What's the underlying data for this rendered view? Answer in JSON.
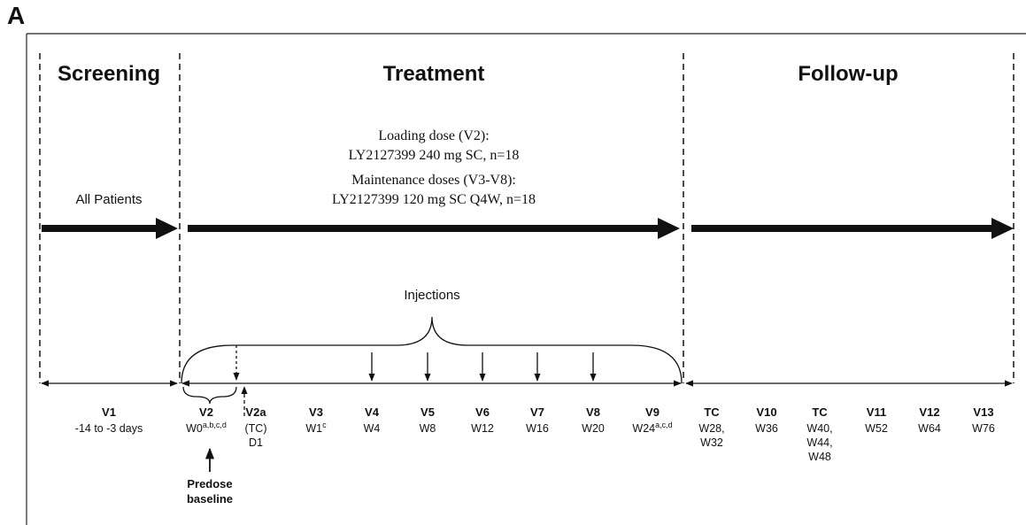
{
  "panel_label": "A",
  "phases": [
    {
      "title": "Screening"
    },
    {
      "title": "Treatment"
    },
    {
      "title": "Follow-up"
    }
  ],
  "screening_arrow_label": "All Patients",
  "dosing": [
    "Loading dose (V2):",
    "LY2127399 240 mg SC, n=18",
    "Maintenance doses (V3-V8):",
    "LY2127399 120 mg SC Q4W, n=18"
  ],
  "injections_label": "Injections",
  "visits": [
    {
      "name": "V1",
      "lines": [
        "-14 to -3 days"
      ]
    },
    {
      "name": "V2",
      "lines": [
        "W0"
      ],
      "sup": "a,b,c,d"
    },
    {
      "name": "V2a",
      "lines": [
        "(TC)",
        "D1"
      ]
    },
    {
      "name": "V3",
      "lines": [
        "W1"
      ],
      "sup": "c"
    },
    {
      "name": "V4",
      "lines": [
        "W4"
      ]
    },
    {
      "name": "V5",
      "lines": [
        "W8"
      ]
    },
    {
      "name": "V6",
      "lines": [
        "W12"
      ]
    },
    {
      "name": "V7",
      "lines": [
        "W16"
      ]
    },
    {
      "name": "V8",
      "lines": [
        "W20"
      ]
    },
    {
      "name": "V9",
      "lines": [
        "W24"
      ],
      "sup": "a,c,d"
    },
    {
      "name": "TC",
      "lines": [
        "W28,",
        "W32"
      ]
    },
    {
      "name": "V10",
      "lines": [
        "W36"
      ]
    },
    {
      "name": "TC",
      "lines": [
        "W40,",
        "W44,",
        "W48"
      ]
    },
    {
      "name": "V11",
      "lines": [
        "W52"
      ]
    },
    {
      "name": "V12",
      "lines": [
        "W64"
      ]
    },
    {
      "name": "V13",
      "lines": [
        "W76"
      ]
    }
  ],
  "predose_label": [
    "Predose",
    "baseline"
  ]
}
